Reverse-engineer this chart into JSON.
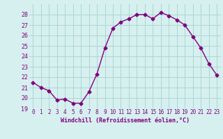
{
  "x": [
    0,
    1,
    2,
    3,
    4,
    5,
    6,
    7,
    8,
    9,
    10,
    11,
    12,
    13,
    14,
    15,
    16,
    17,
    18,
    19,
    20,
    21,
    22,
    23
  ],
  "y": [
    21.5,
    21.0,
    20.7,
    19.8,
    19.9,
    19.5,
    19.5,
    20.6,
    22.3,
    24.8,
    26.7,
    27.3,
    27.6,
    28.0,
    28.0,
    27.6,
    28.2,
    27.9,
    27.5,
    27.0,
    25.9,
    24.8,
    23.3,
    22.2
  ],
  "line_color": "#800080",
  "marker": "D",
  "marker_size": 2.5,
  "bg_color": "#d6f0f0",
  "grid_color": "#aed4d4",
  "xlabel": "Windchill (Refroidissement éolien,°C)",
  "xlabel_color": "#800080",
  "tick_color": "#800080",
  "ylim": [
    19,
    29
  ],
  "xlim": [
    -0.5,
    23.5
  ],
  "yticks": [
    19,
    20,
    21,
    22,
    23,
    24,
    25,
    26,
    27,
    28
  ],
  "xticks": [
    0,
    1,
    2,
    3,
    4,
    5,
    6,
    7,
    8,
    9,
    10,
    11,
    12,
    13,
    14,
    15,
    16,
    17,
    18,
    19,
    20,
    21,
    22,
    23
  ],
  "linewidth": 1.0
}
